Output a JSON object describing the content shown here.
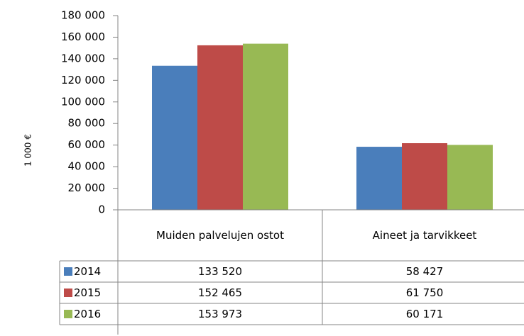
{
  "chart_data": {
    "type": "bar",
    "y_axis_label": "1 000 €",
    "categories": [
      "Muiden palvelujen ostot",
      "Aineet ja tarvikkeet"
    ],
    "series": [
      {
        "name": "2014",
        "color": "#4a7ebb",
        "values": [
          133520,
          58427
        ],
        "value_labels": [
          "133 520",
          "58 427"
        ]
      },
      {
        "name": "2015",
        "color": "#be4b48",
        "values": [
          152465,
          61750
        ],
        "value_labels": [
          "152 465",
          "61 750"
        ]
      },
      {
        "name": "2016",
        "color": "#98b954",
        "values": [
          153973,
          60171
        ],
        "value_labels": [
          "153 973",
          "60 171"
        ]
      }
    ],
    "ylim": [
      0,
      180000
    ],
    "yticks": [
      0,
      {
        "value": 20000,
        "label": "20 000"
      },
      {
        "value": 40000,
        "label": "40 000"
      },
      {
        "value": 60000,
        "label": "60 000"
      },
      {
        "value": 80000,
        "label": "80 000"
      },
      {
        "value": 100000,
        "label": "100 000"
      },
      {
        "value": 120000,
        "label": "120 000"
      },
      {
        "value": 140000,
        "label": "140 000"
      },
      {
        "value": 160000,
        "label": "160 000"
      },
      {
        "value": 180000,
        "label": "180 000"
      }
    ],
    "grid": false
  }
}
